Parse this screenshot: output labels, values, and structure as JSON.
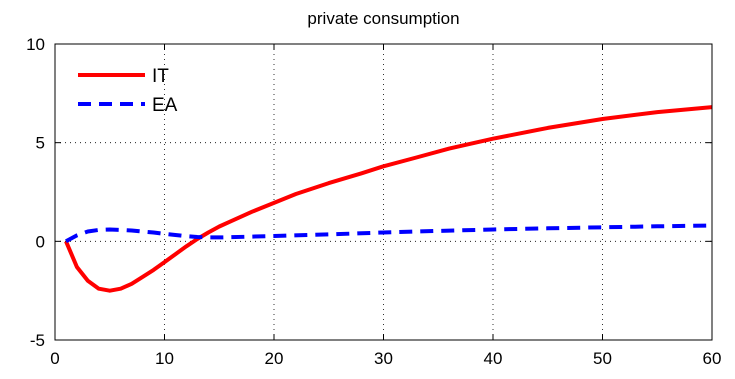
{
  "chart_data": {
    "type": "line",
    "title": "private consumption",
    "xlabel": "",
    "ylabel": "",
    "xlim": [
      0,
      60
    ],
    "ylim": [
      -5,
      10
    ],
    "xticks": [
      0,
      10,
      20,
      30,
      40,
      50,
      60
    ],
    "yticks": [
      -5,
      0,
      5,
      10
    ],
    "grid": true,
    "legend_position": "top-left",
    "series": [
      {
        "name": "IT",
        "color": "#ff0000",
        "style": "solid",
        "x": [
          1,
          2,
          3,
          4,
          5,
          6,
          7,
          8,
          9,
          10,
          11,
          12,
          13,
          14,
          15,
          16,
          18,
          20,
          22,
          25,
          28,
          30,
          33,
          36,
          40,
          45,
          50,
          55,
          60
        ],
        "y": [
          0,
          -1.3,
          -2.0,
          -2.4,
          -2.5,
          -2.4,
          -2.15,
          -1.8,
          -1.45,
          -1.05,
          -0.65,
          -0.25,
          0.12,
          0.45,
          0.75,
          1.0,
          1.5,
          1.95,
          2.4,
          2.95,
          3.45,
          3.8,
          4.25,
          4.7,
          5.2,
          5.75,
          6.2,
          6.55,
          6.8
        ]
      },
      {
        "name": "EA",
        "color": "#0000ff",
        "style": "dashed",
        "x": [
          1,
          2,
          3,
          4,
          5,
          6,
          7,
          8,
          9,
          10,
          11,
          12,
          13,
          14,
          15,
          16,
          18,
          20,
          25,
          30,
          35,
          40,
          45,
          50,
          55,
          60
        ],
        "y": [
          0,
          0.3,
          0.5,
          0.58,
          0.6,
          0.58,
          0.55,
          0.5,
          0.45,
          0.38,
          0.32,
          0.26,
          0.22,
          0.2,
          0.2,
          0.21,
          0.24,
          0.27,
          0.35,
          0.45,
          0.53,
          0.6,
          0.66,
          0.71,
          0.76,
          0.8
        ]
      }
    ]
  }
}
